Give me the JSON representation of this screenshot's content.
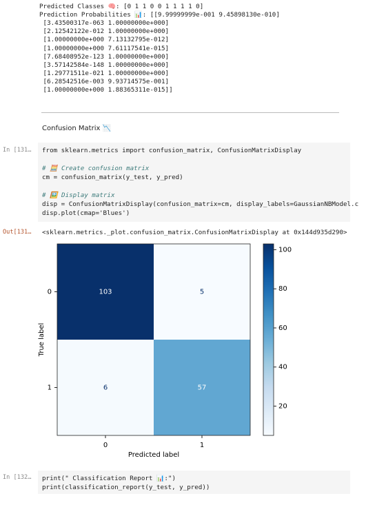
{
  "output_top": [
    "Predicted Classes 🧠: [0 1 1 0 0 1 1 1 1 0]",
    "Prediction Probabilities 📊: [[9.99999999e-001 9.45898130e-010]",
    " [3.43500317e-063 1.00000000e+000]",
    " [2.12542122e-012 1.00000000e+000]",
    " [1.00000000e+000 7.13132795e-012]",
    " [1.00000000e+000 7.61117541e-015]",
    " [7.68408952e-123 1.00000000e+000]",
    " [3.57142584e-148 1.00000000e+000]",
    " [1.29771511e-021 1.00000000e+000]",
    " [6.28542516e-003 9.93714575e-001]",
    " [1.00000000e+000 1.88365311e-015]]"
  ],
  "markdown": {
    "heading": "Confusion Matrix 📉"
  },
  "cells": [
    {
      "prompt": "In [131…",
      "out_prompt": "Out[131…",
      "code": [
        "from sklearn.metrics import confusion_matrix, ConfusionMatrixDisplay",
        "",
        "# 🧮 Create confusion matrix",
        "cm = confusion_matrix(y_test, y_pred)",
        "",
        "# 🖼️ Display matrix",
        "disp = ConfusionMatrixDisplay(confusion_matrix=cm, display_labels=GaussianNBModel.c",
        "disp.plot(cmap='Blues')"
      ],
      "output": "<sklearn.metrics._plot.confusion_matrix.ConfusionMatrixDisplay at 0x144d935d290>"
    },
    {
      "prompt": "In [132…",
      "code": [
        "print(\" Classification Report 📊:\")",
        "print(classification_report(y_test, y_pred))"
      ]
    }
  ],
  "chart_data": {
    "type": "heatmap",
    "colormap": "Blues",
    "xlabel": "Predicted label",
    "ylabel": "True label",
    "x_categories": [
      "0",
      "1"
    ],
    "y_categories": [
      "0",
      "1"
    ],
    "values": [
      [
        103,
        5
      ],
      [
        6,
        57
      ]
    ],
    "clim": [
      5,
      103
    ],
    "cticks": [
      20,
      40,
      60,
      80,
      100
    ]
  }
}
